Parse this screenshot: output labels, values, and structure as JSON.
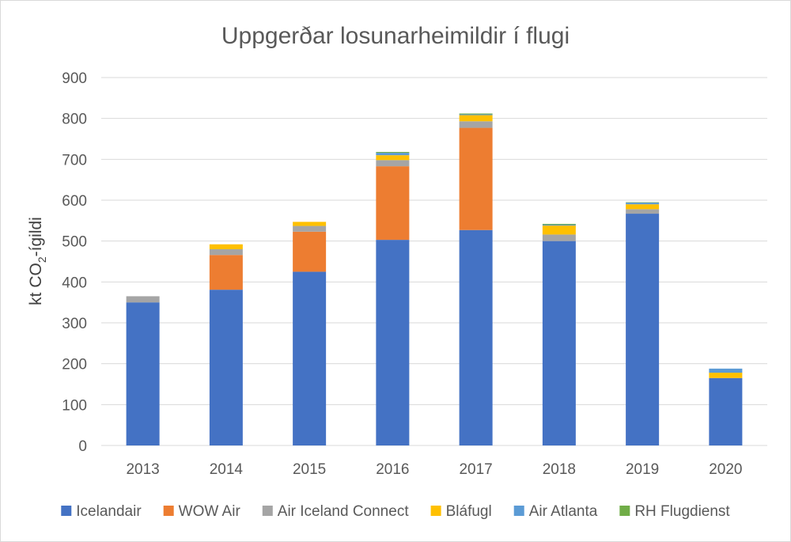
{
  "chart_data": {
    "type": "bar",
    "stacked": true,
    "title": "Uppgerðar losunarheimildir í flugi",
    "xlabel": "",
    "ylabel": {
      "prefix": "kt CO",
      "subscript": "2",
      "suffix": "-ígildi"
    },
    "ylim": [
      0,
      900
    ],
    "yticks": [
      0,
      100,
      200,
      300,
      400,
      500,
      600,
      700,
      800,
      900
    ],
    "grid": true,
    "legend_position": "bottom",
    "categories": [
      "2013",
      "2014",
      "2015",
      "2016",
      "2017",
      "2018",
      "2019",
      "2020"
    ],
    "series": [
      {
        "name": "Icelandair",
        "color": "#4472c4",
        "values": [
          350,
          381,
          425,
          503,
          527,
          500,
          567,
          165
        ]
      },
      {
        "name": "WOW Air",
        "color": "#ed7d31",
        "values": [
          0,
          85,
          98,
          180,
          250,
          0,
          0,
          0
        ]
      },
      {
        "name": "Air Iceland Connect",
        "color": "#a5a5a5",
        "values": [
          15,
          14,
          14,
          15,
          16,
          16,
          11,
          0
        ]
      },
      {
        "name": "Bláfugl",
        "color": "#ffc000",
        "values": [
          0,
          12,
          10,
          12,
          15,
          22,
          12,
          13
        ]
      },
      {
        "name": "Air Atlanta",
        "color": "#5b9bd5",
        "values": [
          0,
          0,
          0,
          6,
          2,
          2,
          4,
          10
        ]
      },
      {
        "name": "RH Flugdienst",
        "color": "#70ad47",
        "values": [
          0,
          0,
          0,
          2,
          2,
          2,
          1,
          0
        ]
      }
    ]
  }
}
